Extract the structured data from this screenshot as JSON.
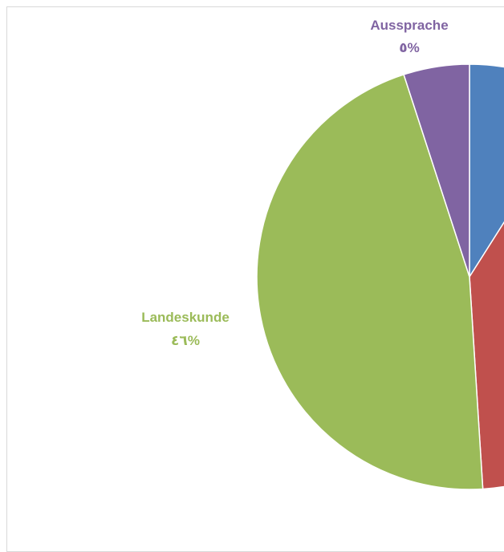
{
  "chart_data": {
    "type": "pie",
    "visible_labels": [
      {
        "category": "Aussprache",
        "value_label": "٥%",
        "color": "#8064A2"
      },
      {
        "category": "Landeskunde",
        "value_label": "٤٦%",
        "color": "#9BBB59"
      }
    ],
    "slices": [
      {
        "color": "#4F81BD",
        "value": 9
      },
      {
        "color": "#C0504D",
        "value": 40
      },
      {
        "color": "#9BBB59",
        "value": 46
      },
      {
        "color": "#8064A2",
        "value": 5
      }
    ]
  }
}
